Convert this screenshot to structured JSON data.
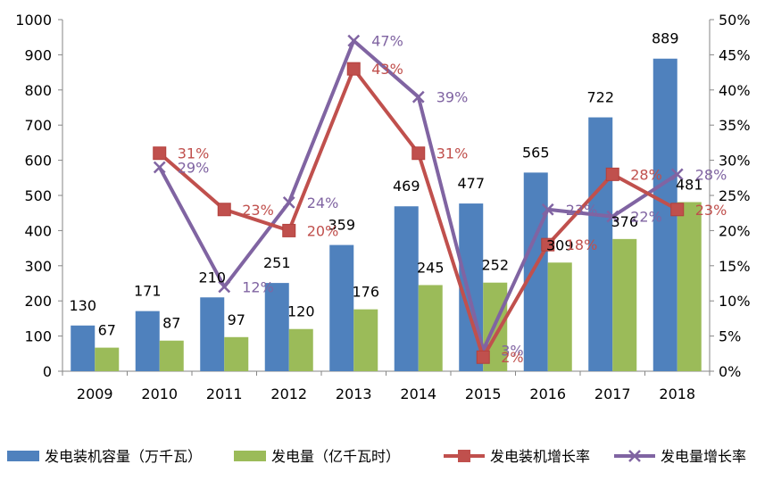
{
  "chart_data": {
    "type": "bar",
    "title": "",
    "xlabel": "",
    "ylabel": "",
    "y2label": "",
    "categories": [
      "2009",
      "2010",
      "2011",
      "2012",
      "2013",
      "2014",
      "2015",
      "2016",
      "2017",
      "2018"
    ],
    "ylim": [
      0,
      1000
    ],
    "y_ticks": [
      "0",
      "100",
      "200",
      "300",
      "400",
      "500",
      "600",
      "700",
      "800",
      "900",
      "1000"
    ],
    "y2lim": [
      0,
      50
    ],
    "y2_ticks": [
      "0%",
      "5%",
      "10%",
      "15%",
      "20%",
      "25%",
      "30%",
      "35%",
      "40%",
      "45%",
      "50%"
    ],
    "series": [
      {
        "name": "发电装机容量（万千瓦）",
        "type": "bar",
        "axis": "left",
        "color": "#4f81bd",
        "values": [
          130,
          171,
          210,
          251,
          359,
          469,
          477,
          565,
          722,
          889
        ],
        "labels": [
          "130",
          "171",
          "210",
          "251",
          "359",
          "469",
          "477",
          "565",
          "722",
          "889"
        ]
      },
      {
        "name": "发电量（亿千瓦时）",
        "type": "bar",
        "axis": "left",
        "color": "#9bbb59",
        "values": [
          67,
          87,
          97,
          120,
          176,
          245,
          252,
          309,
          376,
          481
        ],
        "labels": [
          "67",
          "87",
          "97",
          "120",
          "176",
          "245",
          "252",
          "309",
          "376",
          "481"
        ]
      },
      {
        "name": "发电装机增长率",
        "type": "line",
        "axis": "right",
        "marker": "square",
        "color": "#c0504d",
        "values": [
          null,
          31,
          23,
          20,
          43,
          31,
          2,
          18,
          28,
          23
        ],
        "labels": [
          "",
          "31%",
          "23%",
          "20%",
          "43%",
          "31%",
          "2%",
          "18%",
          "28%",
          "23%"
        ]
      },
      {
        "name": "发电量增长率",
        "type": "line",
        "axis": "right",
        "marker": "x",
        "color": "#8064a2",
        "values": [
          null,
          29,
          12,
          24,
          47,
          39,
          3,
          23,
          22,
          28
        ],
        "labels": [
          "",
          "29%",
          "12%",
          "24%",
          "47%",
          "39%",
          "3%",
          "23%",
          "22%",
          "28%"
        ]
      }
    ],
    "legend": "bottom",
    "grid": false
  }
}
